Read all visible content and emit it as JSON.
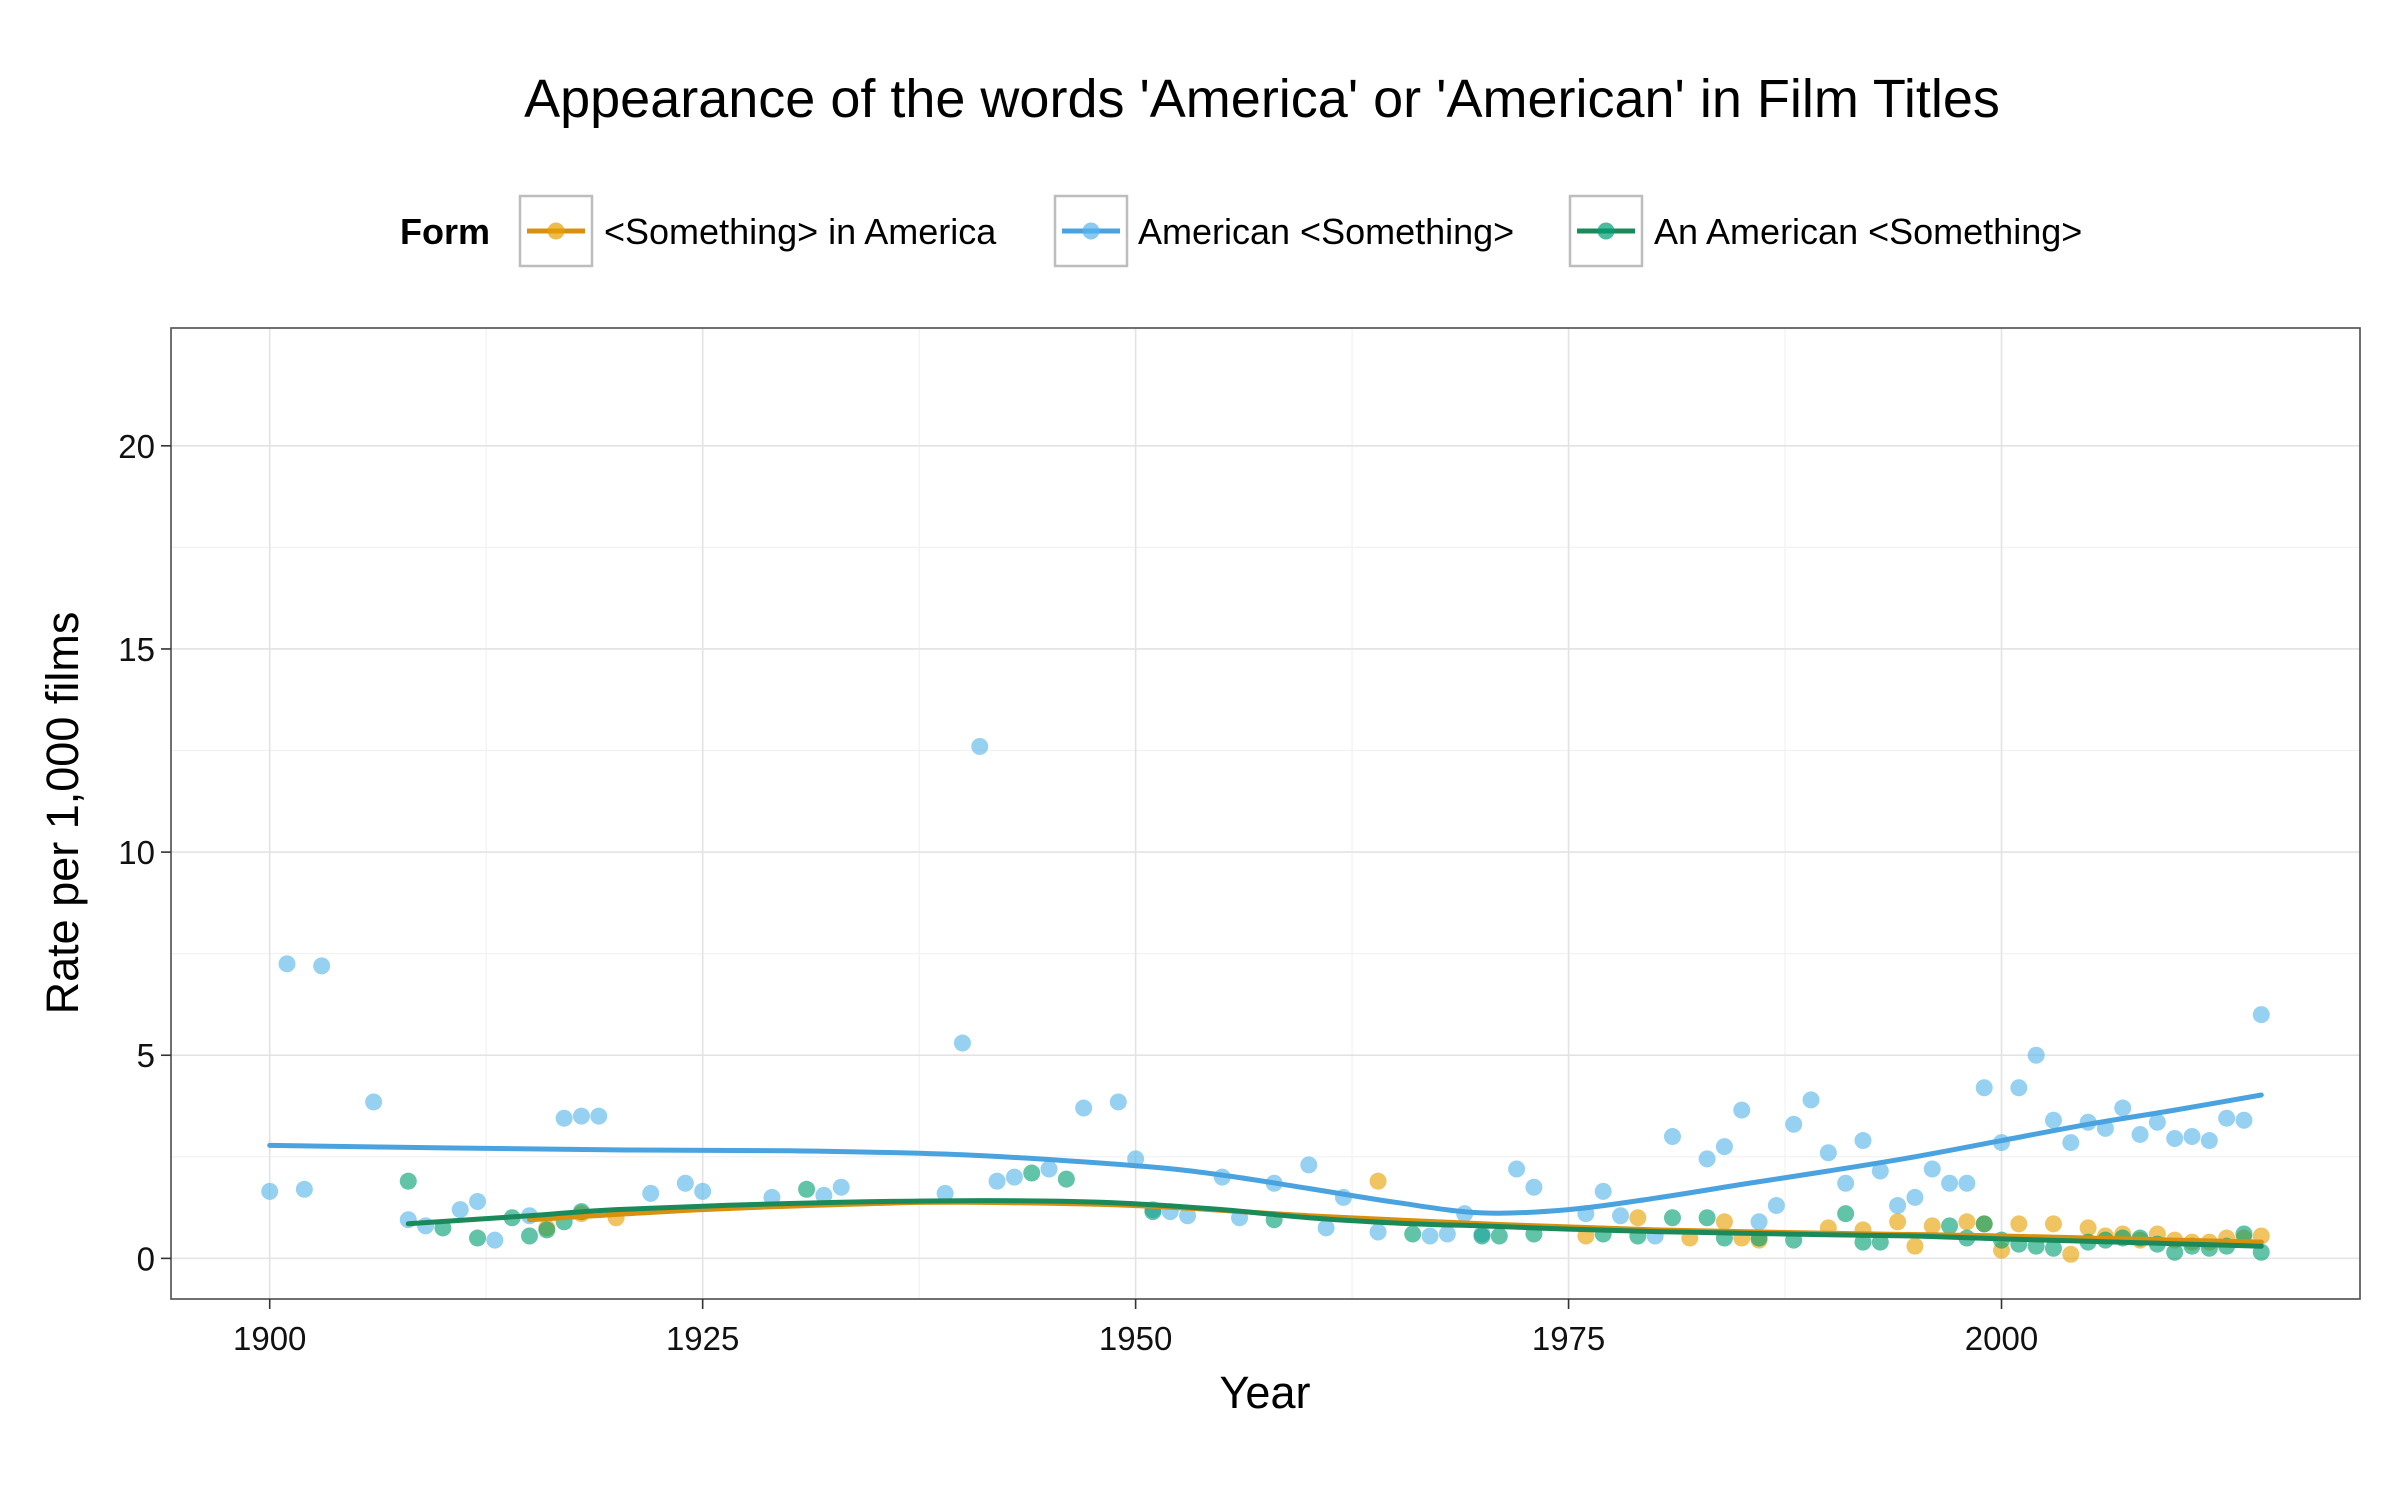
{
  "chart_data": {
    "type": "scatter",
    "title": "Appearance of the words 'America' or 'American' in Film Titles",
    "xlabel": "Year",
    "ylabel": "Rate per 1,000 films",
    "xlim": [
      1894.3,
      2020.7
    ],
    "ylim": [
      -1.0,
      22.9
    ],
    "x_ticks": [
      1900,
      1925,
      1950,
      1975,
      2000
    ],
    "y_ticks": [
      0,
      5,
      10,
      15,
      20
    ],
    "grid": true,
    "legend": {
      "title": "Form",
      "placement": "top",
      "entries": [
        "<Something> in America",
        "American <Something>",
        "An American <Something>"
      ]
    },
    "series": [
      {
        "name": "<Something> in America",
        "color": "#E69F00",
        "line_color": "#D9900E",
        "points": [
          [
            1916,
            0.75
          ],
          [
            1918,
            1.1
          ],
          [
            1920,
            1.0
          ],
          [
            1964,
            1.9
          ],
          [
            1976,
            0.55
          ],
          [
            1979,
            1.0
          ],
          [
            1982,
            0.5
          ],
          [
            1984,
            0.9
          ],
          [
            1985,
            0.5
          ],
          [
            1986,
            0.45
          ],
          [
            1990,
            0.75
          ],
          [
            1992,
            0.7
          ],
          [
            1994,
            0.9
          ],
          [
            1995,
            0.3
          ],
          [
            1996,
            0.8
          ],
          [
            1998,
            0.9
          ],
          [
            1999,
            0.85
          ],
          [
            2000,
            0.2
          ],
          [
            2001,
            0.85
          ],
          [
            2003,
            0.85
          ],
          [
            2004,
            0.1
          ],
          [
            2005,
            0.75
          ],
          [
            2006,
            0.55
          ],
          [
            2007,
            0.6
          ],
          [
            2008,
            0.45
          ],
          [
            2009,
            0.6
          ],
          [
            2010,
            0.45
          ],
          [
            2011,
            0.4
          ],
          [
            2012,
            0.4
          ],
          [
            2013,
            0.5
          ],
          [
            2014,
            0.5
          ],
          [
            2015,
            0.55
          ]
        ],
        "smooth": [
          [
            1915,
            0.95
          ],
          [
            1925,
            1.2
          ],
          [
            1935,
            1.35
          ],
          [
            1940,
            1.38
          ],
          [
            1950,
            1.3
          ],
          [
            1960,
            1.05
          ],
          [
            1970,
            0.85
          ],
          [
            1980,
            0.7
          ],
          [
            1990,
            0.62
          ],
          [
            2000,
            0.55
          ],
          [
            2010,
            0.45
          ],
          [
            2015,
            0.4
          ]
        ]
      },
      {
        "name": "American <Something>",
        "color": "#56B4E9",
        "line_color": "#4AA3DF",
        "points": [
          [
            1900,
            1.65
          ],
          [
            1901,
            7.25
          ],
          [
            1902,
            1.7
          ],
          [
            1903,
            7.2
          ],
          [
            1906,
            3.85
          ],
          [
            1908,
            0.95
          ],
          [
            1909,
            0.8
          ],
          [
            1911,
            1.2
          ],
          [
            1912,
            1.4
          ],
          [
            1913,
            0.45
          ],
          [
            1915,
            1.05
          ],
          [
            1917,
            3.45
          ],
          [
            1918,
            3.5
          ],
          [
            1919,
            3.5
          ],
          [
            1922,
            1.6
          ],
          [
            1924,
            1.85
          ],
          [
            1925,
            1.65
          ],
          [
            1929,
            1.5
          ],
          [
            1932,
            1.55
          ],
          [
            1933,
            1.75
          ],
          [
            1939,
            1.6
          ],
          [
            1940,
            5.3
          ],
          [
            1941,
            12.6
          ],
          [
            1942,
            1.9
          ],
          [
            1943,
            2.0
          ],
          [
            1945,
            2.2
          ],
          [
            1947,
            3.7
          ],
          [
            1949,
            3.85
          ],
          [
            1950,
            2.45
          ],
          [
            1951,
            1.2
          ],
          [
            1952,
            1.15
          ],
          [
            1953,
            1.05
          ],
          [
            1955,
            2.0
          ],
          [
            1956,
            1.0
          ],
          [
            1958,
            1.85
          ],
          [
            1960,
            2.3
          ],
          [
            1961,
            0.75
          ],
          [
            1962,
            1.5
          ],
          [
            1964,
            0.65
          ],
          [
            1967,
            0.55
          ],
          [
            1968,
            0.6
          ],
          [
            1969,
            1.1
          ],
          [
            1970,
            0.6
          ],
          [
            1972,
            2.2
          ],
          [
            1973,
            1.75
          ],
          [
            1976,
            1.1
          ],
          [
            1977,
            1.65
          ],
          [
            1978,
            1.05
          ],
          [
            1980,
            0.55
          ],
          [
            1981,
            3.0
          ],
          [
            1983,
            2.45
          ],
          [
            1984,
            2.75
          ],
          [
            1985,
            3.65
          ],
          [
            1986,
            0.9
          ],
          [
            1987,
            1.3
          ],
          [
            1988,
            3.3
          ],
          [
            1989,
            3.9
          ],
          [
            1990,
            2.6
          ],
          [
            1991,
            1.85
          ],
          [
            1992,
            2.9
          ],
          [
            1993,
            2.15
          ],
          [
            1994,
            1.3
          ],
          [
            1995,
            1.5
          ],
          [
            1996,
            2.2
          ],
          [
            1997,
            1.85
          ],
          [
            1998,
            1.85
          ],
          [
            1999,
            4.2
          ],
          [
            2000,
            2.85
          ],
          [
            2001,
            4.2
          ],
          [
            2002,
            5.0
          ],
          [
            2003,
            3.4
          ],
          [
            2004,
            2.85
          ],
          [
            2005,
            3.35
          ],
          [
            2006,
            3.2
          ],
          [
            2007,
            3.7
          ],
          [
            2008,
            3.05
          ],
          [
            2009,
            3.35
          ],
          [
            2010,
            2.95
          ],
          [
            2011,
            3.0
          ],
          [
            2012,
            2.9
          ],
          [
            2013,
            3.45
          ],
          [
            2014,
            3.4
          ],
          [
            2015,
            6.0
          ]
        ],
        "smooth": [
          [
            1900,
            2.78
          ],
          [
            1910,
            2.72
          ],
          [
            1920,
            2.67
          ],
          [
            1930,
            2.65
          ],
          [
            1940,
            2.55
          ],
          [
            1950,
            2.28
          ],
          [
            1955,
            2.05
          ],
          [
            1960,
            1.72
          ],
          [
            1965,
            1.38
          ],
          [
            1970,
            1.12
          ],
          [
            1975,
            1.2
          ],
          [
            1980,
            1.48
          ],
          [
            1985,
            1.82
          ],
          [
            1990,
            2.15
          ],
          [
            1995,
            2.5
          ],
          [
            2000,
            2.9
          ],
          [
            2005,
            3.3
          ],
          [
            2010,
            3.65
          ],
          [
            2015,
            4.02
          ]
        ]
      },
      {
        "name": "An American <Something>",
        "color": "#009E73",
        "line_color": "#1B8A5A",
        "points": [
          [
            1908,
            1.9
          ],
          [
            1910,
            0.75
          ],
          [
            1912,
            0.5
          ],
          [
            1914,
            1.0
          ],
          [
            1915,
            0.55
          ],
          [
            1916,
            0.7
          ],
          [
            1917,
            0.9
          ],
          [
            1918,
            1.15
          ],
          [
            1931,
            1.7
          ],
          [
            1944,
            2.1
          ],
          [
            1946,
            1.95
          ],
          [
            1951,
            1.15
          ],
          [
            1958,
            0.95
          ],
          [
            1966,
            0.6
          ],
          [
            1970,
            0.55
          ],
          [
            1971,
            0.55
          ],
          [
            1973,
            0.6
          ],
          [
            1977,
            0.6
          ],
          [
            1979,
            0.55
          ],
          [
            1981,
            1.0
          ],
          [
            1983,
            1.0
          ],
          [
            1984,
            0.5
          ],
          [
            1986,
            0.5
          ],
          [
            1988,
            0.45
          ],
          [
            1991,
            1.1
          ],
          [
            1992,
            0.4
          ],
          [
            1993,
            0.4
          ],
          [
            1997,
            0.8
          ],
          [
            1998,
            0.5
          ],
          [
            1999,
            0.85
          ],
          [
            2000,
            0.45
          ],
          [
            2001,
            0.35
          ],
          [
            2002,
            0.3
          ],
          [
            2003,
            0.25
          ],
          [
            2005,
            0.4
          ],
          [
            2006,
            0.45
          ],
          [
            2007,
            0.5
          ],
          [
            2008,
            0.5
          ],
          [
            2009,
            0.35
          ],
          [
            2010,
            0.15
          ],
          [
            2011,
            0.3
          ],
          [
            2012,
            0.25
          ],
          [
            2013,
            0.3
          ],
          [
            2014,
            0.6
          ],
          [
            2015,
            0.15
          ]
        ],
        "smooth": [
          [
            1908,
            0.85
          ],
          [
            1915,
            1.05
          ],
          [
            1920,
            1.2
          ],
          [
            1930,
            1.35
          ],
          [
            1940,
            1.42
          ],
          [
            1948,
            1.38
          ],
          [
            1955,
            1.2
          ],
          [
            1960,
            1.0
          ],
          [
            1966,
            0.85
          ],
          [
            1970,
            0.8
          ],
          [
            1975,
            0.72
          ],
          [
            1980,
            0.66
          ],
          [
            1985,
            0.62
          ],
          [
            1990,
            0.58
          ],
          [
            1995,
            0.55
          ],
          [
            2000,
            0.48
          ],
          [
            2005,
            0.42
          ],
          [
            2010,
            0.36
          ],
          [
            2015,
            0.3
          ]
        ]
      }
    ]
  }
}
